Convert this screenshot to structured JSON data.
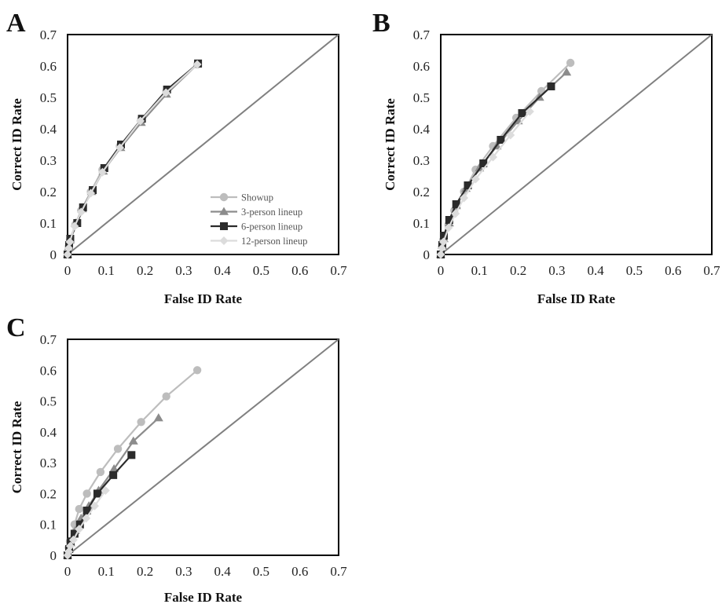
{
  "figure": {
    "series_styles": [
      {
        "name": "Showup",
        "color": "#bdbdbd",
        "marker": "circle"
      },
      {
        "name": "3-person lineup",
        "color": "#8c8c8c",
        "marker": "triangle"
      },
      {
        "name": "6-person lineup",
        "color": "#2b2b2b",
        "marker": "square"
      },
      {
        "name": "12-person lineup",
        "color": "#dcdcdc",
        "marker": "diamond"
      }
    ],
    "diagonal_color": "#808080"
  },
  "chart_data": [
    {
      "panel": "A",
      "type": "line",
      "xlabel": "False ID Rate",
      "ylabel": "Correct ID Rate",
      "xlim": [
        0,
        0.7
      ],
      "ylim": [
        0,
        0.7
      ],
      "xticks": [
        "0",
        "0.1",
        "0.2",
        "0.3",
        "0.4",
        "0.5",
        "0.6",
        "0.7"
      ],
      "yticks": [
        "0",
        "0.1",
        "0.2",
        "0.3",
        "0.4",
        "0.5",
        "0.6",
        "0.7"
      ],
      "diagonal": true,
      "legend": {
        "show": true,
        "placement": "bottom-right",
        "labels": [
          "Showup",
          "3-person lineup",
          "6-person lineup",
          "12-person lineup"
        ]
      },
      "series": [
        {
          "name": "Showup",
          "points": [
            [
              0,
              0
            ],
            [
              0.003,
              0.025
            ],
            [
              0.006,
              0.045
            ],
            [
              0.02,
              0.095
            ],
            [
              0.035,
              0.14
            ],
            [
              0.06,
              0.2
            ],
            [
              0.09,
              0.27
            ],
            [
              0.135,
              0.345
            ],
            [
              0.19,
              0.43
            ],
            [
              0.255,
              0.52
            ],
            [
              0.335,
              0.605
            ]
          ]
        },
        {
          "name": "3-person lineup",
          "points": [
            [
              0,
              0
            ],
            [
              0.003,
              0.025
            ],
            [
              0.006,
              0.045
            ],
            [
              0.022,
              0.1
            ],
            [
              0.038,
              0.145
            ],
            [
              0.062,
              0.2
            ],
            [
              0.092,
              0.265
            ],
            [
              0.137,
              0.34
            ],
            [
              0.19,
              0.42
            ],
            [
              0.255,
              0.51
            ],
            [
              0.335,
              0.605
            ]
          ]
        },
        {
          "name": "6-person lineup",
          "points": [
            [
              0,
              0
            ],
            [
              0.004,
              0.03
            ],
            [
              0.007,
              0.05
            ],
            [
              0.025,
              0.1
            ],
            [
              0.04,
              0.15
            ],
            [
              0.065,
              0.205
            ],
            [
              0.095,
              0.275
            ],
            [
              0.138,
              0.35
            ],
            [
              0.192,
              0.432
            ],
            [
              0.257,
              0.525
            ],
            [
              0.337,
              0.608
            ]
          ]
        },
        {
          "name": "12-person lineup",
          "points": [
            [
              0,
              0
            ],
            [
              0.003,
              0.02
            ],
            [
              0.006,
              0.04
            ],
            [
              0.018,
              0.09
            ],
            [
              0.035,
              0.135
            ],
            [
              0.06,
              0.195
            ],
            [
              0.09,
              0.262
            ],
            [
              0.135,
              0.34
            ],
            [
              0.188,
              0.425
            ],
            [
              0.254,
              0.515
            ],
            [
              0.335,
              0.605
            ]
          ]
        }
      ]
    },
    {
      "panel": "B",
      "type": "line",
      "xlabel": "False ID Rate",
      "ylabel": "Correct ID Rate",
      "xlim": [
        0,
        0.7
      ],
      "ylim": [
        0,
        0.7
      ],
      "xticks": [
        "0",
        "0.1",
        "0.2",
        "0.3",
        "0.4",
        "0.5",
        "0.6",
        "0.7"
      ],
      "yticks": [
        "0",
        "0.1",
        "0.2",
        "0.3",
        "0.4",
        "0.5",
        "0.6",
        "0.7"
      ],
      "diagonal": true,
      "legend": {
        "show": false
      },
      "series": [
        {
          "name": "Showup",
          "points": [
            [
              0,
              0
            ],
            [
              0.003,
              0.025
            ],
            [
              0.006,
              0.045
            ],
            [
              0.02,
              0.095
            ],
            [
              0.035,
              0.14
            ],
            [
              0.06,
              0.2
            ],
            [
              0.09,
              0.27
            ],
            [
              0.135,
              0.345
            ],
            [
              0.195,
              0.435
            ],
            [
              0.26,
              0.52
            ],
            [
              0.335,
              0.61
            ]
          ]
        },
        {
          "name": "3-person lineup",
          "points": [
            [
              0,
              0
            ],
            [
              0.004,
              0.028
            ],
            [
              0.008,
              0.05
            ],
            [
              0.022,
              0.1
            ],
            [
              0.04,
              0.155
            ],
            [
              0.065,
              0.21
            ],
            [
              0.1,
              0.275
            ],
            [
              0.145,
              0.345
            ],
            [
              0.2,
              0.425
            ],
            [
              0.255,
              0.5
            ],
            [
              0.325,
              0.58
            ]
          ]
        },
        {
          "name": "6-person lineup",
          "points": [
            [
              0,
              0
            ],
            [
              0.004,
              0.03
            ],
            [
              0.008,
              0.06
            ],
            [
              0.022,
              0.11
            ],
            [
              0.04,
              0.16
            ],
            [
              0.07,
              0.22
            ],
            [
              0.11,
              0.29
            ],
            [
              0.155,
              0.365
            ],
            [
              0.21,
              0.45
            ],
            [
              0.285,
              0.535
            ]
          ]
        },
        {
          "name": "12-person lineup",
          "points": [
            [
              0,
              0
            ],
            [
              0.003,
              0.02
            ],
            [
              0.007,
              0.04
            ],
            [
              0.02,
              0.085
            ],
            [
              0.038,
              0.13
            ],
            [
              0.06,
              0.18
            ],
            [
              0.09,
              0.24
            ],
            [
              0.135,
              0.31
            ],
            [
              0.18,
              0.38
            ],
            [
              0.23,
              0.455
            ]
          ]
        }
      ]
    },
    {
      "panel": "C",
      "type": "line",
      "xlabel": "False ID Rate",
      "ylabel": "Correct ID Rate",
      "xlim": [
        0,
        0.7
      ],
      "ylim": [
        0,
        0.7
      ],
      "xticks": [
        "0",
        "0.1",
        "0.2",
        "0.3",
        "0.4",
        "0.5",
        "0.6",
        "0.7"
      ],
      "yticks": [
        "0",
        "0.1",
        "0.2",
        "0.3",
        "0.4",
        "0.5",
        "0.6",
        "0.7"
      ],
      "diagonal": true,
      "legend": {
        "show": false
      },
      "series": [
        {
          "name": "Showup",
          "points": [
            [
              0,
              0
            ],
            [
              0.003,
              0.025
            ],
            [
              0.006,
              0.045
            ],
            [
              0.018,
              0.1
            ],
            [
              0.03,
              0.15
            ],
            [
              0.05,
              0.2
            ],
            [
              0.085,
              0.27
            ],
            [
              0.13,
              0.345
            ],
            [
              0.19,
              0.432
            ],
            [
              0.255,
              0.515
            ],
            [
              0.335,
              0.6
            ]
          ]
        },
        {
          "name": "3-person lineup",
          "points": [
            [
              0,
              0
            ],
            [
              0.004,
              0.02
            ],
            [
              0.008,
              0.04
            ],
            [
              0.02,
              0.08
            ],
            [
              0.035,
              0.12
            ],
            [
              0.055,
              0.16
            ],
            [
              0.08,
              0.21
            ],
            [
              0.12,
              0.28
            ],
            [
              0.17,
              0.37
            ],
            [
              0.235,
              0.445
            ]
          ]
        },
        {
          "name": "6-person lineup",
          "points": [
            [
              0,
              0
            ],
            [
              0.004,
              0.02
            ],
            [
              0.008,
              0.045
            ],
            [
              0.018,
              0.07
            ],
            [
              0.032,
              0.1
            ],
            [
              0.05,
              0.145
            ],
            [
              0.077,
              0.2
            ],
            [
              0.118,
              0.26
            ],
            [
              0.165,
              0.325
            ]
          ]
        },
        {
          "name": "12-person lineup",
          "points": [
            [
              0,
              0
            ],
            [
              0.003,
              0.012
            ],
            [
              0.007,
              0.03
            ],
            [
              0.015,
              0.05
            ],
            [
              0.03,
              0.085
            ],
            [
              0.048,
              0.12
            ],
            [
              0.07,
              0.16
            ],
            [
              0.098,
              0.21
            ]
          ]
        }
      ]
    }
  ]
}
